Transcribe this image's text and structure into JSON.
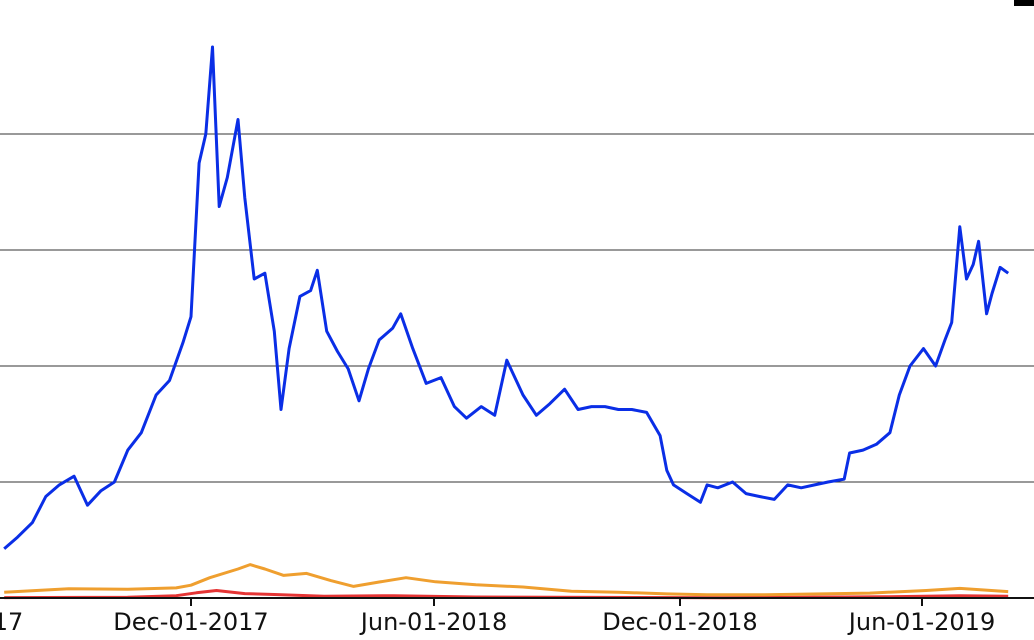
{
  "chart_data": {
    "type": "line",
    "title": "",
    "xlabel": "",
    "ylabel": "",
    "grid": true,
    "x_axis": {
      "visible_tick_labels": [
        "17",
        "Dec-01-2017",
        "Jun-01-2018",
        "Dec-01-2018",
        "Jun-01-2019"
      ],
      "range": [
        "2017-07-15",
        "2019-08-01"
      ]
    },
    "y_axis": {
      "tick_labels_visible": false,
      "range": [
        0,
        20000
      ],
      "gridlines": [
        4000,
        8000,
        12000,
        16000
      ]
    },
    "series": [
      {
        "color": "#0a2ee6",
        "points": [
          [
            "2017-07-15",
            1700
          ],
          [
            "2017-07-25",
            2100
          ],
          [
            "2017-08-05",
            2600
          ],
          [
            "2017-08-15",
            3500
          ],
          [
            "2017-08-25",
            3900
          ],
          [
            "2017-09-05",
            4200
          ],
          [
            "2017-09-15",
            3200
          ],
          [
            "2017-09-25",
            3700
          ],
          [
            "2017-10-05",
            4000
          ],
          [
            "2017-10-15",
            5100
          ],
          [
            "2017-10-25",
            5700
          ],
          [
            "2017-11-05",
            7000
          ],
          [
            "2017-11-15",
            7500
          ],
          [
            "2017-11-25",
            8800
          ],
          [
            "2017-12-01",
            9700
          ],
          [
            "2017-12-07",
            15000
          ],
          [
            "2017-12-12",
            16000
          ],
          [
            "2017-12-17",
            19000
          ],
          [
            "2017-12-22",
            13500
          ],
          [
            "2017-12-28",
            14500
          ],
          [
            "2018-01-05",
            16500
          ],
          [
            "2018-01-10",
            13800
          ],
          [
            "2018-01-17",
            11000
          ],
          [
            "2018-01-25",
            11200
          ],
          [
            "2018-02-01",
            9200
          ],
          [
            "2018-02-06",
            6500
          ],
          [
            "2018-02-12",
            8600
          ],
          [
            "2018-02-20",
            10400
          ],
          [
            "2018-02-28",
            10600
          ],
          [
            "2018-03-05",
            11300
          ],
          [
            "2018-03-12",
            9200
          ],
          [
            "2018-03-20",
            8500
          ],
          [
            "2018-03-28",
            7900
          ],
          [
            "2018-04-05",
            6800
          ],
          [
            "2018-04-12",
            7900
          ],
          [
            "2018-04-20",
            8900
          ],
          [
            "2018-04-30",
            9300
          ],
          [
            "2018-05-06",
            9800
          ],
          [
            "2018-05-15",
            8600
          ],
          [
            "2018-05-25",
            7400
          ],
          [
            "2018-06-05",
            7600
          ],
          [
            "2018-06-15",
            6600
          ],
          [
            "2018-06-24",
            6200
          ],
          [
            "2018-07-05",
            6600
          ],
          [
            "2018-07-15",
            6300
          ],
          [
            "2018-07-24",
            8200
          ],
          [
            "2018-08-05",
            7000
          ],
          [
            "2018-08-15",
            6300
          ],
          [
            "2018-08-25",
            6700
          ],
          [
            "2018-09-05",
            7200
          ],
          [
            "2018-09-15",
            6500
          ],
          [
            "2018-09-25",
            6600
          ],
          [
            "2018-10-05",
            6600
          ],
          [
            "2018-10-15",
            6500
          ],
          [
            "2018-10-25",
            6500
          ],
          [
            "2018-11-05",
            6400
          ],
          [
            "2018-11-15",
            5600
          ],
          [
            "2018-11-20",
            4400
          ],
          [
            "2018-11-25",
            3900
          ],
          [
            "2018-12-05",
            3600
          ],
          [
            "2018-12-15",
            3300
          ],
          [
            "2018-12-20",
            3900
          ],
          [
            "2018-12-28",
            3800
          ],
          [
            "2019-01-08",
            4000
          ],
          [
            "2019-01-18",
            3600
          ],
          [
            "2019-01-28",
            3500
          ],
          [
            "2019-02-08",
            3400
          ],
          [
            "2019-02-18",
            3900
          ],
          [
            "2019-02-28",
            3800
          ],
          [
            "2019-03-10",
            3900
          ],
          [
            "2019-03-20",
            4000
          ],
          [
            "2019-04-01",
            4100
          ],
          [
            "2019-04-05",
            5000
          ],
          [
            "2019-04-15",
            5100
          ],
          [
            "2019-04-25",
            5300
          ],
          [
            "2019-05-05",
            5700
          ],
          [
            "2019-05-12",
            7000
          ],
          [
            "2019-05-20",
            8000
          ],
          [
            "2019-05-30",
            8600
          ],
          [
            "2019-06-08",
            8000
          ],
          [
            "2019-06-15",
            8900
          ],
          [
            "2019-06-20",
            9500
          ],
          [
            "2019-06-26",
            12800
          ],
          [
            "2019-07-01",
            11000
          ],
          [
            "2019-07-06",
            11500
          ],
          [
            "2019-07-10",
            12300
          ],
          [
            "2019-07-16",
            9800
          ],
          [
            "2019-07-20",
            10500
          ],
          [
            "2019-07-26",
            11400
          ],
          [
            "2019-08-01",
            11200
          ]
        ]
      },
      {
        "color": "#ef9f2f",
        "points": [
          [
            "2017-07-15",
            200
          ],
          [
            "2017-09-01",
            320
          ],
          [
            "2017-10-15",
            300
          ],
          [
            "2017-11-20",
            350
          ],
          [
            "2017-12-01",
            440
          ],
          [
            "2017-12-15",
            700
          ],
          [
            "2018-01-05",
            1000
          ],
          [
            "2018-01-14",
            1150
          ],
          [
            "2018-01-25",
            1000
          ],
          [
            "2018-02-08",
            780
          ],
          [
            "2018-02-25",
            850
          ],
          [
            "2018-03-15",
            600
          ],
          [
            "2018-04-01",
            400
          ],
          [
            "2018-04-20",
            550
          ],
          [
            "2018-05-10",
            700
          ],
          [
            "2018-06-01",
            560
          ],
          [
            "2018-07-01",
            460
          ],
          [
            "2018-08-05",
            380
          ],
          [
            "2018-09-10",
            230
          ],
          [
            "2018-10-15",
            200
          ],
          [
            "2018-11-20",
            140
          ],
          [
            "2018-12-20",
            110
          ],
          [
            "2019-02-01",
            110
          ],
          [
            "2019-03-15",
            140
          ],
          [
            "2019-04-20",
            170
          ],
          [
            "2019-06-01",
            260
          ],
          [
            "2019-06-26",
            330
          ],
          [
            "2019-08-01",
            220
          ]
        ]
      },
      {
        "color": "#e53535",
        "points": [
          [
            "2017-07-15",
            15
          ],
          [
            "2017-10-15",
            25
          ],
          [
            "2017-11-20",
            80
          ],
          [
            "2017-12-05",
            180
          ],
          [
            "2017-12-20",
            260
          ],
          [
            "2018-01-10",
            150
          ],
          [
            "2018-02-01",
            120
          ],
          [
            "2018-03-10",
            60
          ],
          [
            "2018-05-01",
            80
          ],
          [
            "2018-07-01",
            35
          ],
          [
            "2018-10-01",
            20
          ],
          [
            "2019-01-01",
            10
          ],
          [
            "2019-05-01",
            40
          ],
          [
            "2019-06-26",
            80
          ],
          [
            "2019-08-01",
            60
          ]
        ]
      }
    ]
  }
}
